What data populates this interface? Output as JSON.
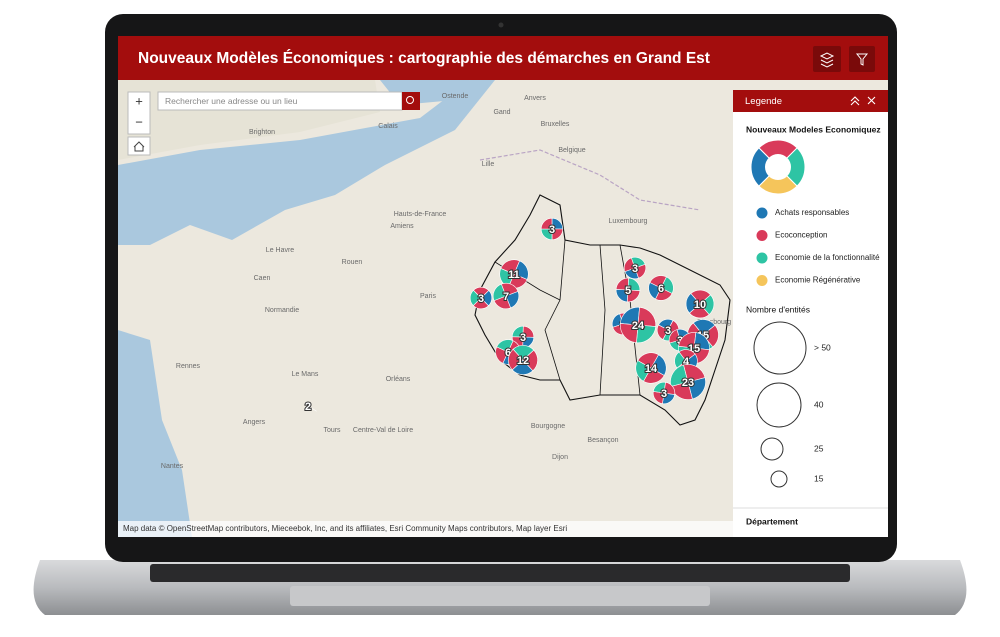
{
  "header": {
    "title": "Nouveaux Modèles Économiques : cartographie des démarches en Grand Est"
  },
  "search": {
    "placeholder": "Rechercher une adresse ou un lieu"
  },
  "zoom": {
    "in": "+",
    "out": "−"
  },
  "map": {
    "places": [
      "Brighton",
      "Calais",
      "Ostende",
      "Anvers",
      "Gand",
      "Bruxelles",
      "Belgique",
      "Lille",
      "Hauts-de-France",
      "Luxembourg",
      "Le Havre",
      "Caen",
      "Rouen",
      "Amiens",
      "Normandie",
      "Paris",
      "Rennes",
      "Le Mans",
      "Orléans",
      "Angers",
      "Tours",
      "Nantes",
      "Centre-Val de Loire",
      "Bourgogne",
      "Dijon",
      "Besançon",
      "Strasbourg"
    ],
    "clusters": [
      3,
      11,
      3,
      7,
      3,
      6,
      12,
      3,
      5,
      6,
      10,
      3,
      24,
      3,
      15,
      3,
      15,
      14,
      4,
      23,
      3,
      2
    ],
    "attribution": "Map data © OpenStreetMap contributors, Mieceebok, Inc, and its affiliates, Esri Community Maps contributors, Map layer Esri"
  },
  "legend": {
    "title": "Legende",
    "layer": "Nouveaux Modeles Economiquez",
    "categories": [
      {
        "name": "Achats responsables",
        "color": "#1f78b4"
      },
      {
        "name": "Ecoconception",
        "color": "#d93a5a"
      },
      {
        "name": "Economie de la fonctionnalité",
        "color": "#2ec4a4"
      },
      {
        "name": "Economie Régénérative",
        "color": "#f5c55b"
      }
    ],
    "size_title": "Nombre d'entités",
    "sizes": [
      "> 50",
      "40",
      "25",
      "15"
    ],
    "department": "Département"
  }
}
